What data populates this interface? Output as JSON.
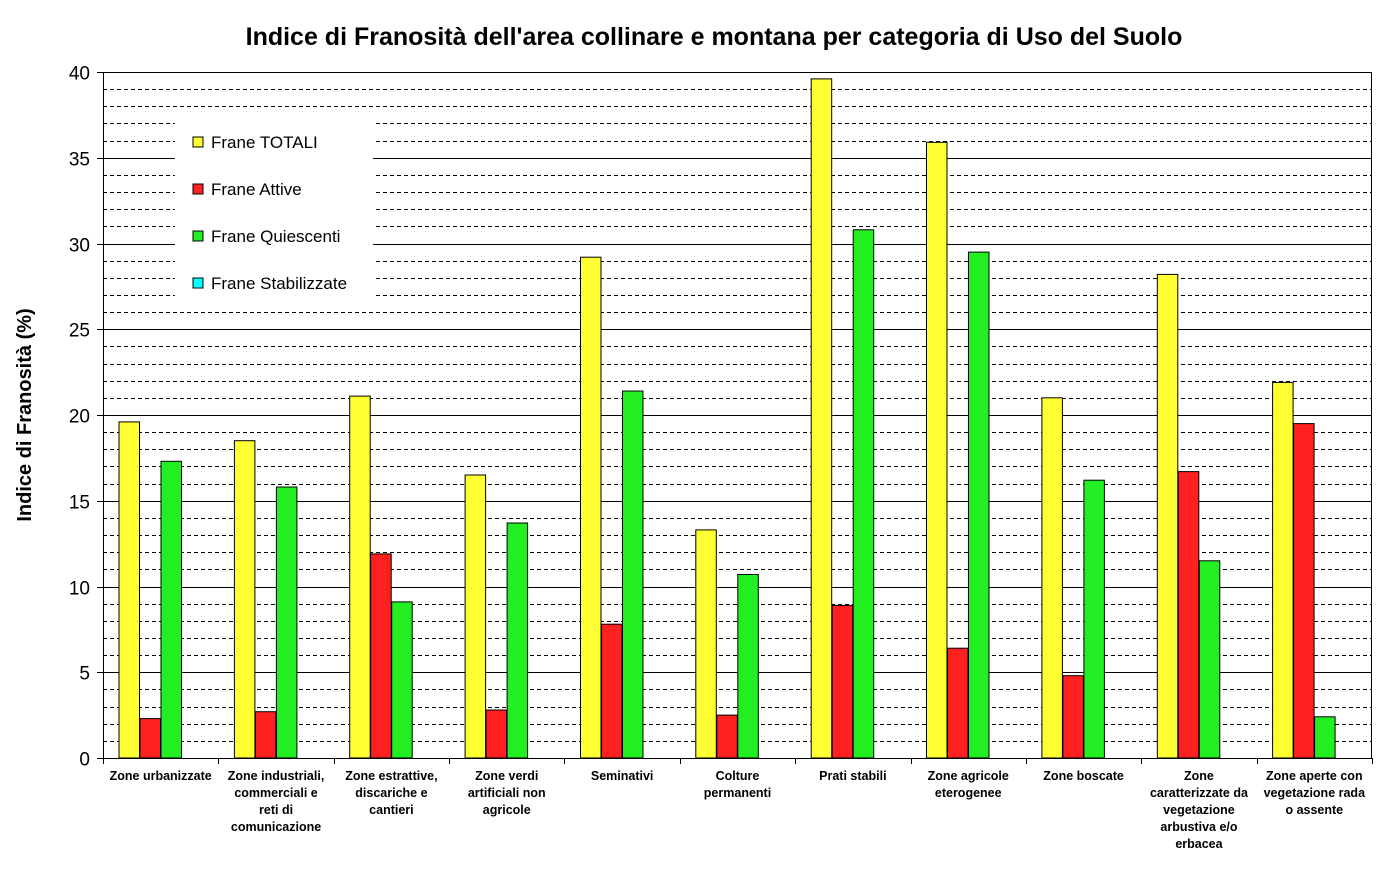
{
  "chart_data": {
    "type": "bar",
    "title": "Indice di Franosità dell'area collinare e montana per categoria di Uso del Suolo",
    "xlabel": "",
    "ylabel": "Indice di Franosità (%)",
    "ylim": [
      0,
      40
    ],
    "yticks": [
      0,
      5,
      10,
      15,
      20,
      25,
      30,
      35,
      40
    ],
    "grid": true,
    "legend_position": "top-left",
    "categories": [
      [
        "Zone urbanizzate"
      ],
      [
        "Zone industriali,",
        "commerciali e",
        "reti di",
        "comunicazione"
      ],
      [
        "Zone estrattive,",
        "discariche e",
        "cantieri"
      ],
      [
        "Zone verdi",
        "artificiali non",
        "agricole"
      ],
      [
        "Seminativi"
      ],
      [
        "Colture",
        "permanenti"
      ],
      [
        "Prati stabili"
      ],
      [
        "Zone agricole",
        "eterogenee"
      ],
      [
        "Zone boscate"
      ],
      [
        "Zone",
        "caratterizzate da",
        "vegetazione",
        "arbustiva e/o",
        "erbacea"
      ],
      [
        "Zone aperte con",
        "vegetazione rada",
        "o assente"
      ]
    ],
    "series": [
      {
        "name": "Frane TOTALI",
        "color": "#FFFF33",
        "values": [
          19.6,
          18.5,
          21.1,
          16.5,
          29.2,
          13.3,
          39.6,
          35.9,
          21.0,
          28.2,
          21.9
        ]
      },
      {
        "name": "Frane Attive",
        "color": "#FF2020",
        "values": [
          2.3,
          2.7,
          11.9,
          2.8,
          7.8,
          2.5,
          8.9,
          6.4,
          4.8,
          16.7,
          19.5
        ]
      },
      {
        "name": "Frane Quiescenti",
        "color": "#22EE22",
        "values": [
          17.3,
          15.8,
          9.1,
          13.7,
          21.4,
          10.7,
          30.8,
          29.5,
          16.2,
          11.5,
          2.4
        ]
      },
      {
        "name": "Frane Stabilizzate",
        "color": "#00FFFF",
        "values": [
          0,
          0,
          0,
          0,
          0,
          0,
          0,
          0,
          0,
          0,
          0
        ]
      }
    ]
  }
}
